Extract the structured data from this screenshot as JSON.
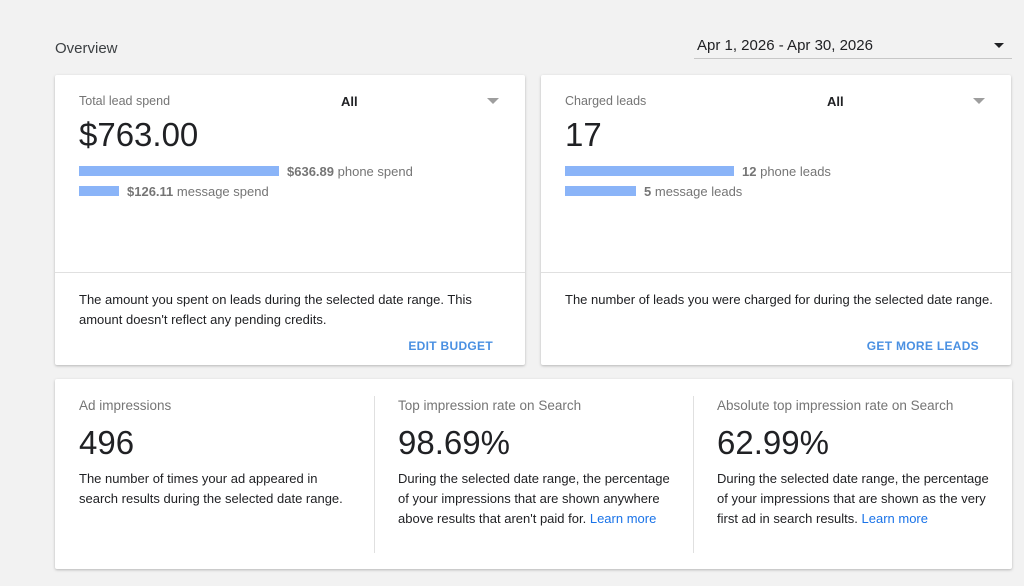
{
  "overview": {
    "title": "Overview"
  },
  "date_range": {
    "value": "Apr 1, 2026 - Apr 30, 2026"
  },
  "spend_card": {
    "label": "Total lead spend",
    "filter": "All",
    "value": "$763.00",
    "bars": [
      {
        "amount": "$636.89",
        "text": "phone spend",
        "fraction": 0.835
      },
      {
        "amount": "$126.11",
        "text": "message spend",
        "fraction": 0.165
      }
    ],
    "description": "The amount you spent on leads during the selected date range. This amount doesn't reflect any pending credits.",
    "action": "EDIT BUDGET"
  },
  "leads_card": {
    "label": "Charged leads",
    "filter": "All",
    "value": "17",
    "bars": [
      {
        "amount": "12",
        "text": "phone leads",
        "fraction": 0.706
      },
      {
        "amount": "5",
        "text": "message leads",
        "fraction": 0.294
      }
    ],
    "description": "The number of leads you were charged for during the selected date range.",
    "action": "GET MORE LEADS"
  },
  "metrics": [
    {
      "label": "Ad impressions",
      "value": "496",
      "description": "The number of times your ad appeared in search results during the selected date range.",
      "link": ""
    },
    {
      "label": "Top impression rate on Search",
      "value": "98.69%",
      "description": "During the selected date range, the percentage of your impressions that are shown anywhere above results that aren't paid for.",
      "link": "Learn more"
    },
    {
      "label": "Absolute top impression rate on Search",
      "value": "62.99%",
      "description": "During the selected date range, the percentage of your impressions that are shown as the very first ad in search results.",
      "link": "Learn more"
    }
  ],
  "colors": {
    "bar": "#8ab4f8",
    "action": "#4a90e2",
    "link": "#1a73e8"
  }
}
